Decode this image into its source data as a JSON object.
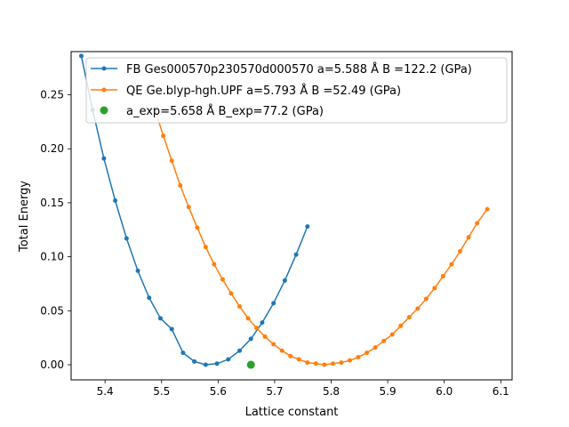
{
  "chart_data": {
    "type": "line",
    "title": "",
    "xlabel": "Lattice constant",
    "ylabel": "Total Energy",
    "xlim": [
      5.34,
      6.12
    ],
    "ylim": [
      -0.014,
      0.29
    ],
    "xticks": [
      5.4,
      5.5,
      5.6,
      5.7,
      5.8,
      5.9,
      6.0,
      6.1
    ],
    "yticks": [
      0.0,
      0.05,
      0.1,
      0.15,
      0.2,
      0.25
    ],
    "xtick_labels": [
      "5.4",
      "5.5",
      "5.6",
      "5.7",
      "5.8",
      "5.9",
      "6.0",
      "6.1"
    ],
    "ytick_labels": [
      "0.00",
      "0.05",
      "0.10",
      "0.15",
      "0.20",
      "0.25"
    ],
    "grid": false,
    "legend_position": "top-right",
    "series": [
      {
        "name": "FB Ges000570p230570d000570 a=5.588 Å B =122.2 (GPa)",
        "color": "#1f77b4",
        "marker": "dot",
        "x": [
          5.358,
          5.378,
          5.398,
          5.418,
          5.438,
          5.458,
          5.478,
          5.498,
          5.518,
          5.538,
          5.558,
          5.578,
          5.598,
          5.618,
          5.638,
          5.658,
          5.678,
          5.698,
          5.718,
          5.738,
          5.758
        ],
        "y": [
          0.286,
          0.236,
          0.191,
          0.152,
          0.117,
          0.087,
          0.062,
          0.043,
          0.033,
          0.011,
          0.003,
          0.0,
          0.001,
          0.005,
          0.013,
          0.024,
          0.039,
          0.057,
          0.078,
          0.102,
          0.128
        ]
      },
      {
        "name": "QE Ge.blyp-hgh.UPF a=5.793 Å B =52.49 (GPa)",
        "color": "#ff7f0e",
        "marker": "dot",
        "x": [
          5.488,
          5.503,
          5.518,
          5.533,
          5.548,
          5.563,
          5.578,
          5.593,
          5.608,
          5.623,
          5.638,
          5.653,
          5.668,
          5.683,
          5.698,
          5.713,
          5.728,
          5.743,
          5.758,
          5.773,
          5.788,
          5.803,
          5.818,
          5.833,
          5.848,
          5.863,
          5.878,
          5.893,
          5.908,
          5.923,
          5.938,
          5.953,
          5.968,
          5.983,
          5.998,
          6.013,
          6.028,
          6.043,
          6.058,
          6.076
        ],
        "y": [
          0.237,
          0.212,
          0.189,
          0.166,
          0.146,
          0.127,
          0.109,
          0.093,
          0.079,
          0.066,
          0.054,
          0.043,
          0.034,
          0.026,
          0.019,
          0.013,
          0.008,
          0.005,
          0.002,
          0.001,
          0.0,
          0.001,
          0.002,
          0.004,
          0.007,
          0.011,
          0.016,
          0.022,
          0.028,
          0.036,
          0.044,
          0.052,
          0.061,
          0.071,
          0.082,
          0.093,
          0.105,
          0.118,
          0.131,
          0.144
        ]
      },
      {
        "name": "a_exp=5.658 Å  B_exp=77.2 (GPa)",
        "color": "#2ca02c",
        "marker": "big-dot",
        "x": [
          5.658
        ],
        "y": [
          0.0
        ]
      }
    ]
  }
}
